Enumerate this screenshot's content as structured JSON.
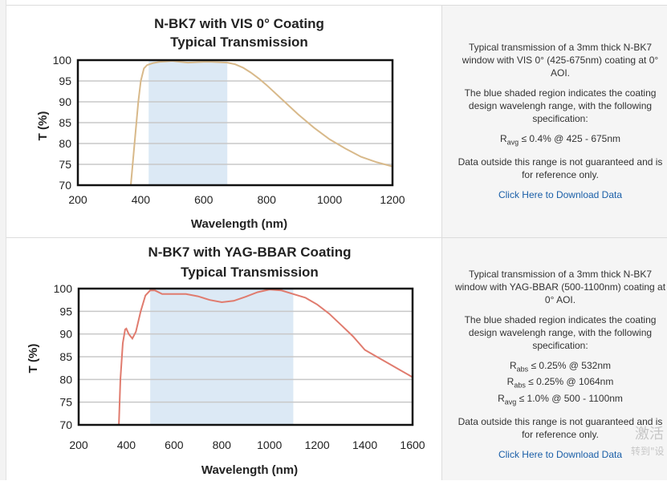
{
  "chart_data": [
    {
      "type": "line",
      "title": "N-BK7 with VIS 0° Coating",
      "subtitle": "Typical Transmission",
      "xlabel": "Wavelength (nm)",
      "ylabel": "T (%)",
      "xlim": [
        200,
        1200
      ],
      "ylim": [
        70,
        100
      ],
      "xticks": [
        "200",
        "400",
        "600",
        "800",
        "1000",
        "1200"
      ],
      "yticks": [
        "100",
        "95",
        "90",
        "85",
        "80",
        "75",
        "70"
      ],
      "shaded_range": [
        425,
        675
      ],
      "grid": true,
      "line_color": "#d8b98a",
      "shade_color": "#dce9f5",
      "series": [
        {
          "x": [
            367,
            380,
            392,
            400,
            410,
            420,
            440,
            460,
            480,
            500,
            525,
            550,
            575,
            600,
            625,
            650,
            675,
            700,
            725,
            750,
            775,
            800,
            850,
            900,
            950,
            1000,
            1050,
            1100,
            1150,
            1200
          ],
          "values": [
            69,
            80,
            90,
            95,
            98,
            98.8,
            99.3,
            99.6,
            99.7,
            99.8,
            99.6,
            99.4,
            99.5,
            99.6,
            99.6,
            99.5,
            99.4,
            99.0,
            98.2,
            97.0,
            95.6,
            94.0,
            90.5,
            87.0,
            83.8,
            81.0,
            78.8,
            76.8,
            75.5,
            74.5
          ]
        }
      ]
    },
    {
      "type": "line",
      "title": "N-BK7 with YAG-BBAR Coating",
      "subtitle": "Typical Transmission",
      "xlabel": "Wavelength (nm)",
      "ylabel": "T (%)",
      "xlim": [
        200,
        1600
      ],
      "ylim": [
        70,
        100
      ],
      "xticks": [
        "200",
        "400",
        "600",
        "800",
        "1000",
        "1200",
        "1400",
        "1600"
      ],
      "yticks": [
        "100",
        "95",
        "90",
        "85",
        "80",
        "75",
        "70"
      ],
      "shaded_range": [
        500,
        1100
      ],
      "grid": true,
      "line_color": "#e07b6e",
      "shade_color": "#dce9f5",
      "series": [
        {
          "x": [
            368,
            375,
            385,
            395,
            400,
            410,
            425,
            440,
            460,
            480,
            500,
            520,
            550,
            600,
            650,
            700,
            750,
            800,
            850,
            900,
            950,
            1000,
            1050,
            1100,
            1150,
            1200,
            1250,
            1300,
            1350,
            1400,
            1450,
            1500,
            1550,
            1600
          ],
          "values": [
            69,
            80,
            88,
            91,
            91.2,
            90,
            89,
            90.5,
            95,
            98.5,
            99.6,
            99.6,
            98.8,
            98.8,
            98.8,
            98.3,
            97.5,
            97.0,
            97.3,
            98.2,
            99.2,
            99.8,
            99.6,
            98.8,
            98.0,
            96.5,
            94.5,
            92.0,
            89.5,
            86.5,
            85.0,
            83.5,
            82.0,
            80.5
          ]
        }
      ]
    }
  ],
  "panels": [
    {
      "description": "Typical transmission of a 3mm thick N-BK7 window with VIS 0° (425-675nm) coating at 0° AOI.",
      "shade_note": "The blue shaded region indicates the coating design wavelengh range, with the following specification:",
      "specs": [
        {
          "sym": "R",
          "sub": "avg",
          "text": "≤ 0.4% @ 425 - 675nm"
        }
      ],
      "disclaimer": "Data outside this range is not guaranteed and is for reference only.",
      "link": "Click Here to Download Data"
    },
    {
      "description": "Typical transmission of a 3mm thick N-BK7 window with YAG-BBAR (500-1100nm) coating at 0° AOI.",
      "shade_note": "The blue shaded region indicates the coating design wavelengh range, with the following specification:",
      "specs": [
        {
          "sym": "R",
          "sub": "abs",
          "text": "≤ 0.25% @ 532nm"
        },
        {
          "sym": "R",
          "sub": "abs",
          "text": "≤ 0.25% @ 1064nm"
        },
        {
          "sym": "R",
          "sub": "avg",
          "text": "≤ 1.0% @ 500 - 1100nm"
        }
      ],
      "disclaimer": "Data outside this range is not guaranteed and is for reference only.",
      "link": "Click Here to Download Data"
    }
  ],
  "watermark": {
    "line1": "激活",
    "line2": "转到\"设"
  }
}
